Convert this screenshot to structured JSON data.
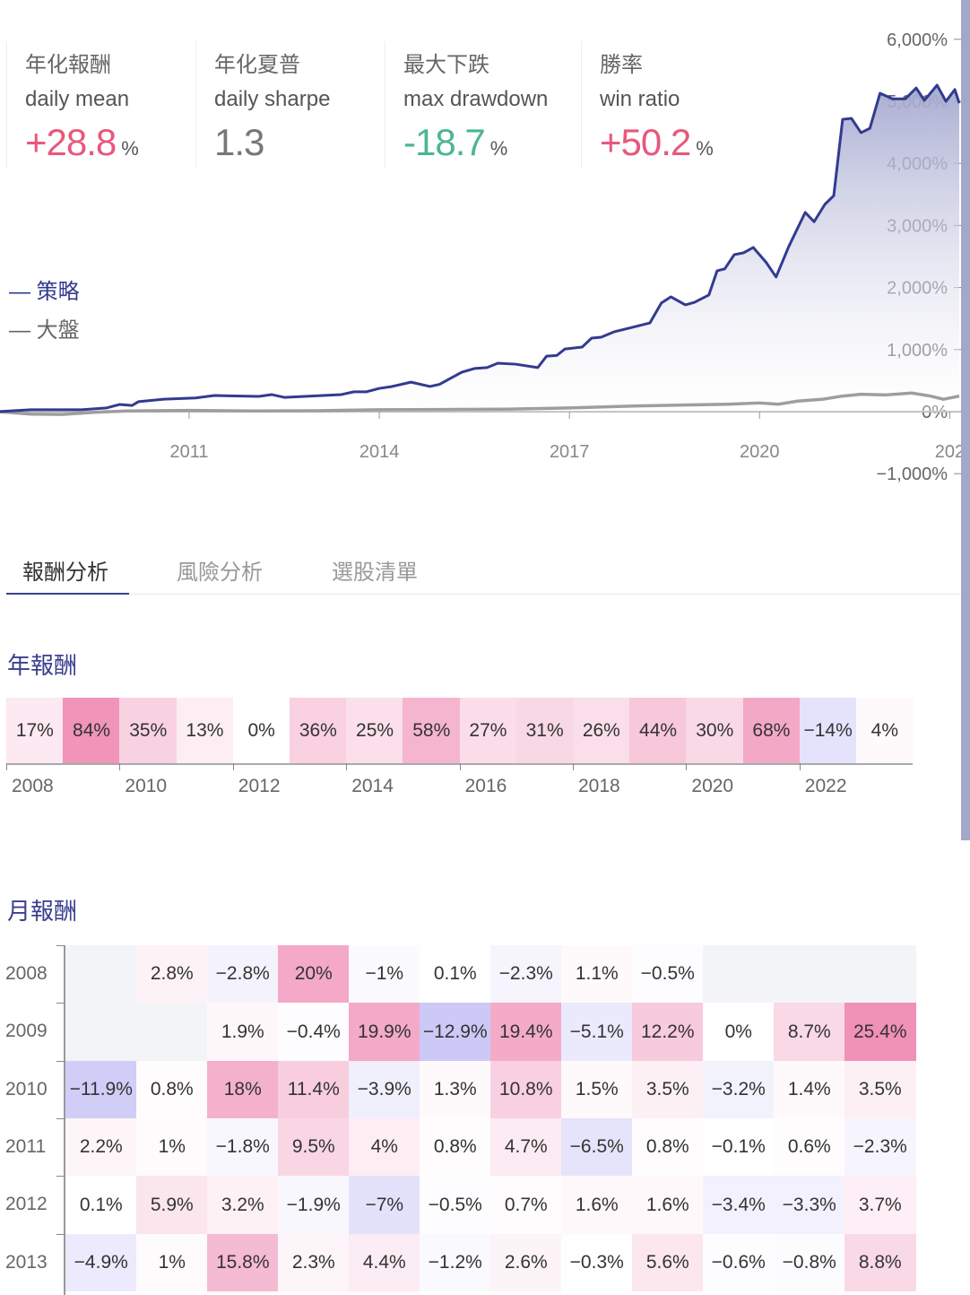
{
  "stats": [
    {
      "zh": "年化報酬",
      "en": "daily mean",
      "value": "+28.8",
      "unit": "%",
      "color": "#e8587a"
    },
    {
      "zh": "年化夏普",
      "en": "daily sharpe",
      "value": "1.3",
      "unit": "",
      "color": "#777777"
    },
    {
      "zh": "最大下跌",
      "en": "max drawdown",
      "value": "-18.7",
      "unit": "%",
      "color": "#4cb596"
    },
    {
      "zh": "勝率",
      "en": "win ratio",
      "value": "+50.2",
      "unit": "%",
      "color": "#e8587a"
    }
  ],
  "chart_data": [
    {
      "type": "area",
      "x_ticks": [
        "2011",
        "2014",
        "2017",
        "2020",
        "202"
      ],
      "y_ticks": [
        "6,000%",
        "5,000%",
        "4,000%",
        "3,000%",
        "2,000%",
        "1,000%",
        "0%",
        "−1,000%"
      ],
      "ylim": [
        -1000,
        6000
      ],
      "xlim": [
        2008,
        2023.15
      ],
      "legend": {
        "placement": "left",
        "items": [
          {
            "label": "— 策略",
            "color": "#323b8f"
          },
          {
            "label": "— 大盤",
            "color": "#9e9e9e"
          }
        ]
      },
      "series": [
        {
          "name": "策略",
          "color": "#323b8f",
          "points": [
            [
              2008.0,
              0
            ],
            [
              2008.5,
              30
            ],
            [
              2009.3,
              30
            ],
            [
              2009.7,
              60
            ],
            [
              2009.9,
              115
            ],
            [
              2010.1,
              100
            ],
            [
              2010.2,
              160
            ],
            [
              2010.6,
              200
            ],
            [
              2011.1,
              220
            ],
            [
              2011.4,
              260
            ],
            [
              2012.1,
              245
            ],
            [
              2012.3,
              275
            ],
            [
              2012.5,
              230
            ],
            [
              2013.4,
              275
            ],
            [
              2013.6,
              320
            ],
            [
              2013.8,
              320
            ],
            [
              2014.0,
              375
            ],
            [
              2014.2,
              405
            ],
            [
              2014.5,
              475
            ],
            [
              2014.8,
              405
            ],
            [
              2014.95,
              440
            ],
            [
              2015.3,
              635
            ],
            [
              2015.5,
              695
            ],
            [
              2015.7,
              710
            ],
            [
              2015.87,
              780
            ],
            [
              2016.15,
              765
            ],
            [
              2016.5,
              710
            ],
            [
              2016.64,
              895
            ],
            [
              2016.8,
              905
            ],
            [
              2016.93,
              1010
            ],
            [
              2017.2,
              1040
            ],
            [
              2017.35,
              1185
            ],
            [
              2017.5,
              1200
            ],
            [
              2017.7,
              1285
            ],
            [
              2018.06,
              1375
            ],
            [
              2018.27,
              1430
            ],
            [
              2018.45,
              1750
            ],
            [
              2018.6,
              1850
            ],
            [
              2018.83,
              1720
            ],
            [
              2018.97,
              1760
            ],
            [
              2019.2,
              1880
            ],
            [
              2019.33,
              2270
            ],
            [
              2019.45,
              2300
            ],
            [
              2019.6,
              2530
            ],
            [
              2019.75,
              2560
            ],
            [
              2019.9,
              2645
            ],
            [
              2020.1,
              2410
            ],
            [
              2020.26,
              2170
            ],
            [
              2020.46,
              2660
            ],
            [
              2020.72,
              3210
            ],
            [
              2020.86,
              3060
            ],
            [
              2021.03,
              3340
            ],
            [
              2021.17,
              3480
            ],
            [
              2021.31,
              4710
            ],
            [
              2021.45,
              4725
            ],
            [
              2021.6,
              4495
            ],
            [
              2021.74,
              4565
            ],
            [
              2021.9,
              5130
            ],
            [
              2022.1,
              5040
            ],
            [
              2022.3,
              5040
            ],
            [
              2022.47,
              5215
            ],
            [
              2022.6,
              5015
            ],
            [
              2022.8,
              5260
            ],
            [
              2022.94,
              5000
            ],
            [
              2023.08,
              5190
            ],
            [
              2023.15,
              4970
            ]
          ]
        },
        {
          "name": "大盤",
          "color": "#9e9e9e",
          "points": [
            [
              2008.0,
              0
            ],
            [
              2008.5,
              -40
            ],
            [
              2009.0,
              -45
            ],
            [
              2009.5,
              -10
            ],
            [
              2010.0,
              10
            ],
            [
              2011.0,
              20
            ],
            [
              2012.0,
              10
            ],
            [
              2013.0,
              15
            ],
            [
              2014.0,
              30
            ],
            [
              2015.0,
              35
            ],
            [
              2016.0,
              40
            ],
            [
              2017.0,
              60
            ],
            [
              2018.0,
              90
            ],
            [
              2019.0,
              110
            ],
            [
              2019.5,
              120
            ],
            [
              2020.0,
              140
            ],
            [
              2020.3,
              120
            ],
            [
              2020.6,
              170
            ],
            [
              2021.0,
              200
            ],
            [
              2021.3,
              250
            ],
            [
              2021.6,
              280
            ],
            [
              2022.0,
              270
            ],
            [
              2022.4,
              300
            ],
            [
              2022.7,
              250
            ],
            [
              2022.9,
              200
            ],
            [
              2023.15,
              250
            ]
          ]
        }
      ]
    },
    {
      "type": "heatmap",
      "title": "年報酬",
      "categories": [
        "2008",
        "2009",
        "2010",
        "2011",
        "2012",
        "2013",
        "2014",
        "2015",
        "2016",
        "2017",
        "2018",
        "2019",
        "2020",
        "2021",
        "2022",
        "2023"
      ],
      "values": [
        17,
        84,
        35,
        13,
        0,
        36,
        25,
        58,
        27,
        31,
        26,
        44,
        30,
        68,
        -14,
        4
      ],
      "labels": [
        "17%",
        "84%",
        "35%",
        "13%",
        "0%",
        "36%",
        "25%",
        "58%",
        "27%",
        "31%",
        "26%",
        "44%",
        "30%",
        "68%",
        "−14%",
        "4%"
      ],
      "x_ticks": [
        "2008",
        "2010",
        "2012",
        "2014",
        "2016",
        "2018",
        "2020",
        "2022"
      ]
    },
    {
      "type": "heatmap",
      "title": "月報酬",
      "rows": [
        "2008",
        "2009",
        "2010",
        "2011",
        "2012",
        "2013"
      ],
      "values": [
        [
          null,
          2.8,
          -2.8,
          20,
          -1,
          0.1,
          -2.3,
          1.1,
          -0.5,
          null,
          null,
          null
        ],
        [
          null,
          null,
          1.9,
          -0.4,
          19.9,
          -12.9,
          19.4,
          -5.1,
          12.2,
          0,
          8.7,
          25.4
        ],
        [
          -11.9,
          0.8,
          18,
          11.4,
          -3.9,
          1.3,
          10.8,
          1.5,
          3.5,
          -3.2,
          1.4,
          3.5
        ],
        [
          2.2,
          1,
          -1.8,
          9.5,
          4,
          0.8,
          4.7,
          -6.5,
          0.8,
          -0.1,
          0.6,
          -2.3
        ],
        [
          0.1,
          5.9,
          3.2,
          -1.9,
          -7,
          -0.5,
          0.7,
          1.6,
          1.6,
          -3.4,
          -3.3,
          3.7
        ],
        [
          -4.9,
          1,
          15.8,
          2.3,
          4.4,
          -1.2,
          2.6,
          -0.3,
          5.6,
          -0.6,
          -0.8,
          8.8
        ]
      ]
    }
  ],
  "tabs": [
    {
      "label": "報酬分析",
      "active": true
    },
    {
      "label": "風險分析"
    },
    {
      "label": "選股清單"
    }
  ],
  "colors": {
    "positive": "#ee86b0",
    "negative": "#c8c4f6",
    "empty": "#f3f4f8",
    "accent": "#3a3f8f"
  }
}
